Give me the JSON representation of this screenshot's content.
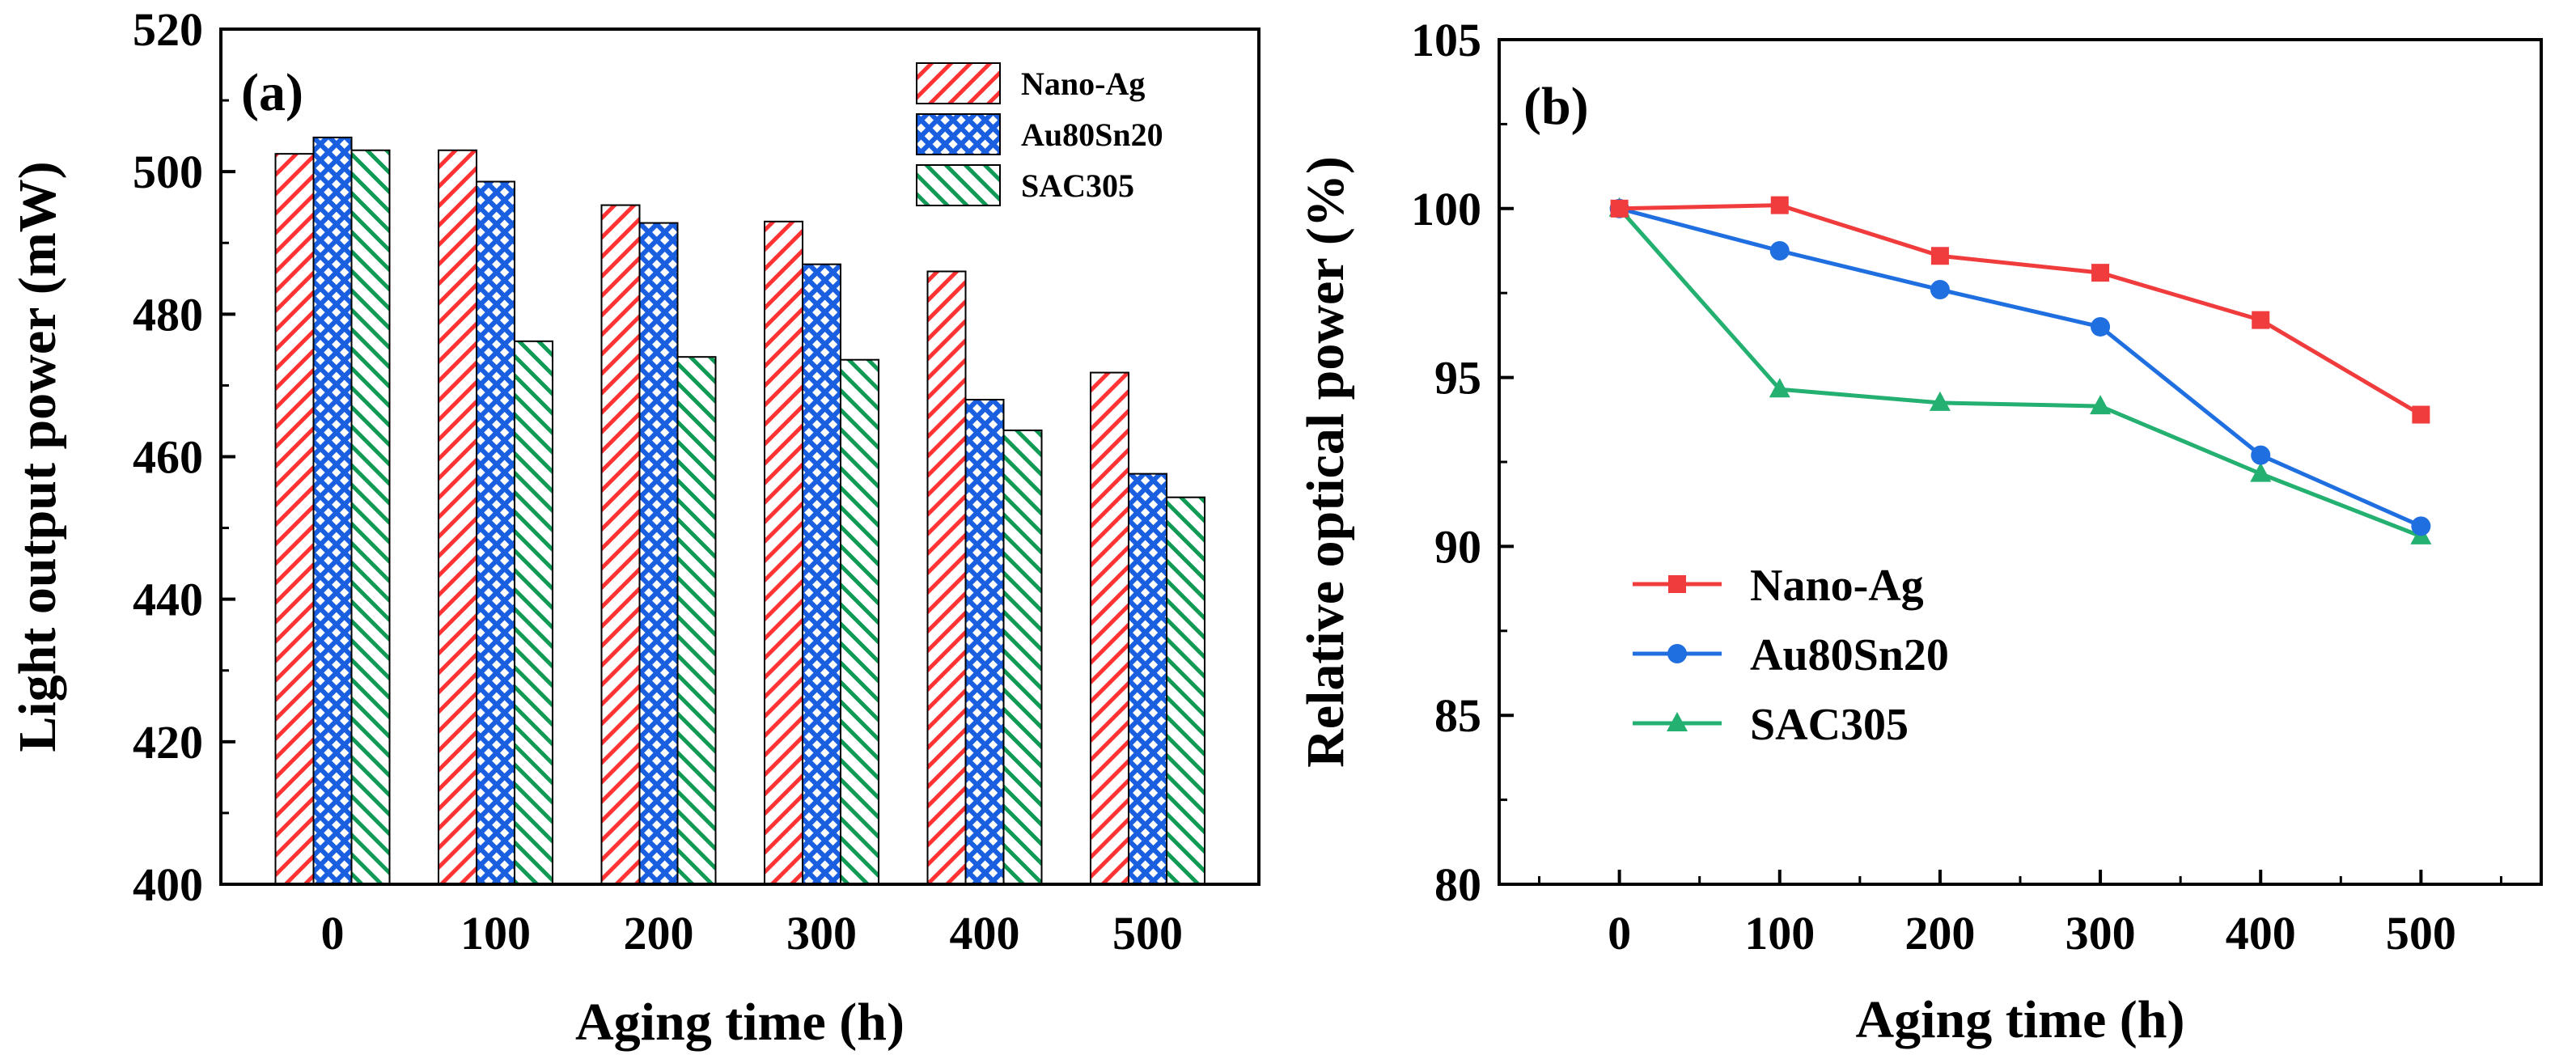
{
  "chart_data": [
    {
      "type": "bar",
      "panel_label": "(a)",
      "xlabel": "Aging time (h)",
      "ylabel": "Light output power (mW)",
      "categories": [
        "0",
        "100",
        "200",
        "300",
        "400",
        "500"
      ],
      "ylim": [
        400,
        520
      ],
      "yticks": [
        "400",
        "420",
        "440",
        "460",
        "480",
        "500",
        "520"
      ],
      "legend_position": "top-right",
      "series": [
        {
          "name": "Nano-Ag",
          "color": "#ff3333",
          "pattern": "diagonal",
          "values": [
            502.5,
            503.0,
            495.3,
            493.0,
            486.0,
            471.8
          ]
        },
        {
          "name": "Au80Sn20",
          "color": "#1a5fe0",
          "pattern": "crosshatch",
          "values": [
            504.8,
            498.6,
            492.8,
            487.0,
            468.0,
            457.6
          ]
        },
        {
          "name": "SAC305",
          "color": "#119a55",
          "pattern": "backdiagonal",
          "values": [
            503.0,
            476.2,
            474.0,
            473.6,
            463.7,
            454.3
          ]
        }
      ]
    },
    {
      "type": "line",
      "panel_label": "(b)",
      "xlabel": "Aging time (h)",
      "ylabel": "Relative optical power (%)",
      "x": [
        0,
        100,
        200,
        300,
        400,
        500
      ],
      "xticks": [
        "0",
        "100",
        "200",
        "300",
        "400",
        "500"
      ],
      "xlim": [
        -75,
        575
      ],
      "ylim": [
        80,
        105
      ],
      "yticks": [
        "80",
        "85",
        "90",
        "95",
        "100",
        "105"
      ],
      "legend_position": "middle-left",
      "series": [
        {
          "name": "Nano-Ag",
          "color": "#f03c3c",
          "marker": "square",
          "values": [
            100.0,
            100.1,
            98.6,
            98.1,
            96.7,
            93.9
          ]
        },
        {
          "name": "Au80Sn20",
          "color": "#1f6fe0",
          "marker": "circle",
          "values": [
            100.0,
            98.75,
            97.6,
            96.5,
            92.7,
            90.6
          ]
        },
        {
          "name": "SAC305",
          "color": "#23b070",
          "marker": "triangle",
          "values": [
            100.0,
            94.65,
            94.25,
            94.15,
            92.15,
            90.3
          ]
        }
      ]
    }
  ]
}
